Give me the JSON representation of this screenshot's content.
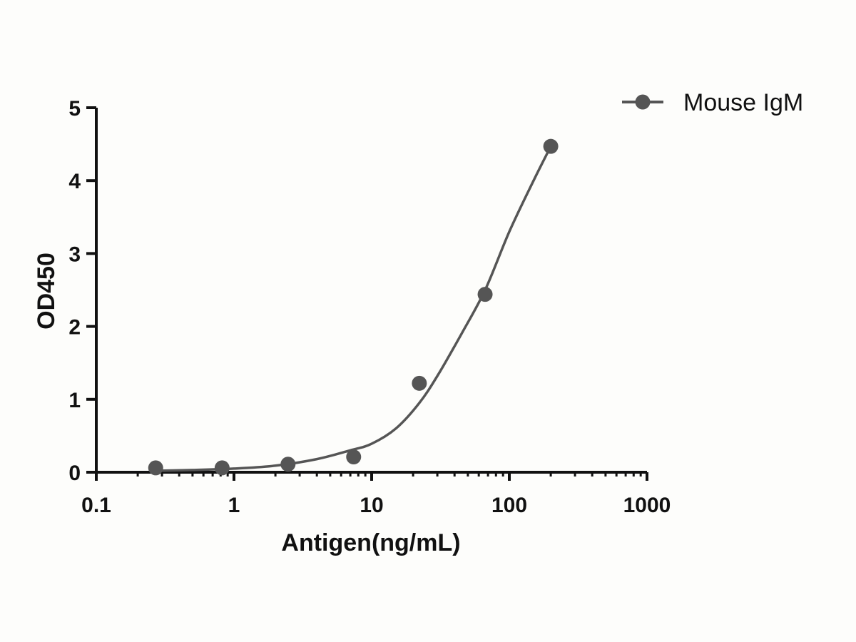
{
  "chart_data": {
    "type": "scatter",
    "xlabel": "Antigen(ng/mL)",
    "ylabel": "OD450",
    "x_scale": "log",
    "xlim": [
      0.1,
      1000
    ],
    "ylim": [
      0,
      5
    ],
    "x_ticks": [
      "0.1",
      "1",
      "10",
      "100",
      "1000"
    ],
    "y_ticks": [
      "0",
      "1",
      "2",
      "3",
      "4",
      "5"
    ],
    "grid": false,
    "legend_position": "top-right",
    "series": [
      {
        "name": "Mouse IgM",
        "color": "#555555",
        "fit": "4PL curve",
        "points": [
          {
            "x": 0.27,
            "y": 0.06
          },
          {
            "x": 0.82,
            "y": 0.06
          },
          {
            "x": 2.47,
            "y": 0.11
          },
          {
            "x": 7.4,
            "y": 0.21
          },
          {
            "x": 22.2,
            "y": 1.22
          },
          {
            "x": 66.7,
            "y": 2.44
          },
          {
            "x": 200,
            "y": 4.47
          }
        ],
        "curve": [
          {
            "x": 0.27,
            "y": 0.02
          },
          {
            "x": 0.5,
            "y": 0.03
          },
          {
            "x": 1,
            "y": 0.05
          },
          {
            "x": 2,
            "y": 0.09
          },
          {
            "x": 4,
            "y": 0.18
          },
          {
            "x": 7,
            "y": 0.3
          },
          {
            "x": 10,
            "y": 0.39
          },
          {
            "x": 15,
            "y": 0.6
          },
          {
            "x": 22.2,
            "y": 0.95
          },
          {
            "x": 30,
            "y": 1.32
          },
          {
            "x": 45,
            "y": 1.9
          },
          {
            "x": 66.7,
            "y": 2.5
          },
          {
            "x": 100,
            "y": 3.3
          },
          {
            "x": 150,
            "y": 4.0
          },
          {
            "x": 200,
            "y": 4.47
          }
        ]
      }
    ]
  }
}
